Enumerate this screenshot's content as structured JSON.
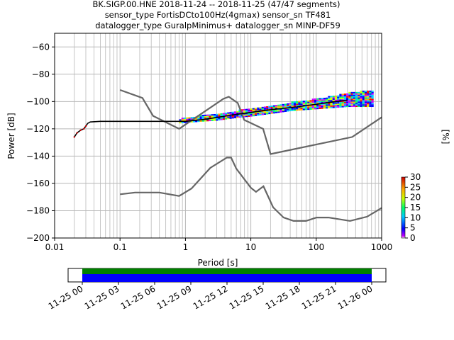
{
  "title": {
    "line1": "BK.SIGP.00.HNE   2018-11-24 -- 2018-11-25  (47/47 segments)",
    "line2": "sensor_type FortisDCto100Hz(4gmax) sensor_sn TF481",
    "line3": "datalogger_type GuralpMinimus+ datalogger_sn MINP-DF59"
  },
  "chart_data": [
    {
      "type": "heatmap",
      "subtype": "probabilistic power spectral density",
      "xlabel": "Period [s]",
      "ylabel": "Power [dB]",
      "xscale": "log",
      "xlim": [
        0.01,
        1000
      ],
      "ylim": [
        -200,
        -50
      ],
      "xtick_values": [
        0.01,
        0.1,
        1,
        10,
        100,
        1000
      ],
      "xtick_labels": [
        "0.01",
        "0.1",
        "1",
        "10",
        "100",
        "1000"
      ],
      "ytick_values": [
        -60,
        -80,
        -100,
        -120,
        -140,
        -160,
        -180,
        -200
      ],
      "ytick_labels": [
        "−60",
        "−80",
        "−100",
        "−120",
        "−140",
        "−160",
        "−180",
        "−200"
      ],
      "grid": true,
      "colorbar": {
        "label": "[%]",
        "range": [
          0,
          30
        ],
        "tick_values": [
          0,
          5,
          10,
          15,
          20,
          25,
          30
        ],
        "tick_labels": [
          "0",
          "5",
          "10",
          "15",
          "20",
          "25",
          "30"
        ],
        "colormap": "pqlx"
      },
      "series": [
        {
          "kind": "upper-noise-model",
          "color": "#666666",
          "x": [
            0.1,
            0.22,
            0.32,
            0.8,
            3.8,
            4.6,
            6.3,
            7.9,
            15.4,
            20,
            354.8,
            1000
          ],
          "y": [
            -91.5,
            -97.4,
            -110.5,
            -120,
            -98,
            -96.5,
            -101,
            -113.5,
            -120,
            -138.5,
            -126,
            -111.5
          ]
        },
        {
          "kind": "lower-noise-model",
          "color": "#666666",
          "x": [
            0.1,
            0.17,
            0.4,
            0.8,
            1.24,
            2.4,
            4.3,
            5.0,
            6.0,
            10,
            12,
            15.6,
            21.9,
            31.6,
            45,
            70,
            101,
            154,
            328,
            600,
            1000
          ],
          "y": [
            -168,
            -166.7,
            -166.7,
            -169.2,
            -163.7,
            -148.6,
            -141.1,
            -141.1,
            -149.2,
            -163.2,
            -166.2,
            -162.1,
            -177.5,
            -185,
            -187.5,
            -187.5,
            -185,
            -185,
            -187.5,
            -184.4,
            -178
          ]
        },
        {
          "kind": "mode",
          "color": "#000000",
          "x": [
            0.02,
            0.022,
            0.025,
            0.028,
            0.03,
            0.032,
            0.035,
            0.05,
            0.1,
            0.3,
            1,
            2,
            5,
            10,
            20,
            50,
            100,
            200,
            300
          ],
          "y": [
            -126,
            -123,
            -121,
            -120,
            -118,
            -116,
            -115,
            -114.5,
            -114.5,
            -114.5,
            -114.5,
            -113,
            -110,
            -108,
            -106,
            -104,
            -102,
            -100,
            -99
          ]
        },
        {
          "kind": "density-band",
          "x": [
            0.8,
            1.5,
            3,
            6,
            10,
            20,
            40,
            80,
            150,
            300,
            700
          ],
          "y_lower": [
            -116,
            -115,
            -114,
            -112,
            -111,
            -109,
            -107,
            -106,
            -105,
            -104,
            -104
          ],
          "y_upper": [
            -113,
            -111,
            -109,
            -107,
            -105,
            -103,
            -101,
            -99,
            -97,
            -94,
            -92
          ]
        }
      ]
    },
    {
      "type": "timeline",
      "subtype": "data availability",
      "xtick_labels": [
        "11-25 00",
        "11-25 03",
        "11-25 06",
        "11-25 09",
        "11-25 12",
        "11-25 15",
        "11-25 18",
        "11-25 21",
        "11-26 00"
      ],
      "segments": [
        {
          "start": "11-25 00",
          "end": "11-26 00",
          "kind": "data",
          "color": "#0000ff"
        },
        {
          "start": "11-25 00",
          "end": "11-26 00",
          "kind": "used",
          "color": "#008000"
        }
      ]
    }
  ]
}
